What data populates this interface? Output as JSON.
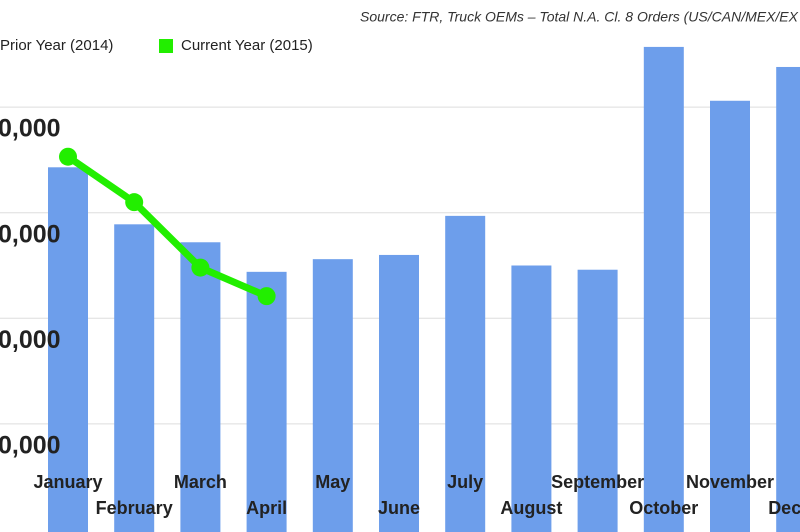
{
  "chart_data": {
    "type": "bar",
    "source": "Source: FTR, Truck OEMs – Total N.A. Cl. 8 Orders (US/CAN/MEX/EX",
    "categories": [
      "January",
      "February",
      "March",
      "April",
      "May",
      "June",
      "July",
      "August",
      "September",
      "October",
      "November",
      "Dec"
    ],
    "series": [
      {
        "name": "Prior Year (2014)",
        "color": "#6d9eeb",
        "type": "bar",
        "values": [
          44300,
          38900,
          37200,
          34400,
          35600,
          36000,
          39700,
          35000,
          34600,
          55700,
          50600,
          53800
        ]
      },
      {
        "name": "Current Year (2015)",
        "color": "#22ee00",
        "type": "line",
        "values": [
          45300,
          41000,
          34800,
          32100,
          null,
          null,
          null,
          null,
          null,
          null,
          null,
          null
        ]
      }
    ],
    "ylim": [
      10000,
      60000
    ],
    "yticks": [
      {
        "value": 20000,
        "label": "0,000"
      },
      {
        "value": 30000,
        "label": "0,000"
      },
      {
        "value": 40000,
        "label": "0,000"
      },
      {
        "value": 50000,
        "label": "0,000"
      }
    ],
    "grid": true
  }
}
